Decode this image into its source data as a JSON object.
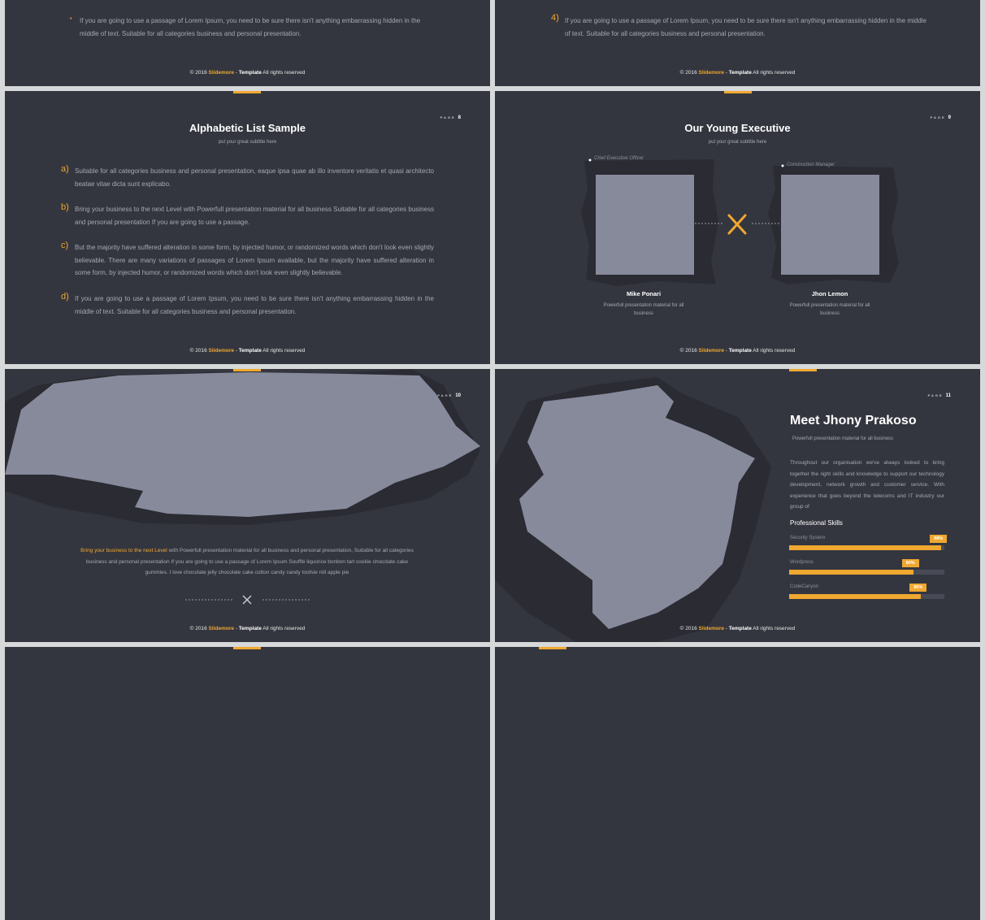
{
  "footer": {
    "year": "© 2016",
    "brand": "Slidemore",
    "sep": "-",
    "template": "Template",
    "rights": "All rights reserved"
  },
  "page_label": "PAGE",
  "slide_top_left": {
    "bullet": "If you are going to use a passage of Lorem Ipsum, you need to be sure there isn't anything embarrassing hidden in the middle of text. Suitable for all categories business and personal presentation."
  },
  "slide_top_right": {
    "marker": "4)",
    "text": "If you are going to use a passage of Lorem Ipsum, you need to be sure there isn't anything embarrassing hidden in the middle of text. Suitable for all categories business and personal presentation."
  },
  "slide_8": {
    "page": "8",
    "title": "Alphabetic List Sample",
    "subtitle": "put your great subtitle here",
    "items": [
      {
        "marker": "a)",
        "text": "Suitable for all categories business and personal presentation, eaque ipsa quae ab illo inventore veritatis et quasi architecto beatae vitae dicta sunt explicabo."
      },
      {
        "marker": "b)",
        "text": "Bring your business to the next Level with Powerfull presentation material for all business Suitable for all categories business and personal presentation If you are going to use a passage."
      },
      {
        "marker": "c)",
        "text": "But the majority have suffered alteration in some form, by injected humor, or randomized words which don't look even slightly believable. There are many variations of passages of Lorem Ipsum available, but the majority have suffered alteration in some form, by injected humor, or randomized words which don't look even slightly believable."
      },
      {
        "marker": "d)",
        "text": "If you are going to use a passage of Lorem Ipsum, you need to be sure there isn't anything embarrassing hidden in the middle of text. Suitable for all categories business and personal presentation."
      }
    ]
  },
  "slide_9": {
    "page": "9",
    "title": "Our Young Executive",
    "subtitle": "put your great subtitle here",
    "people": [
      {
        "role": "Chief Executive Officer",
        "name": "Mike Ponari",
        "desc": "Powerfull presentation material for all business"
      },
      {
        "role": "Construction Manager",
        "name": "Jhon Lemon",
        "desc": "Powerfull presentation material for all business"
      }
    ]
  },
  "slide_10": {
    "page": "10",
    "highlight": "Bring your business to the next Level",
    "body": "with Powerfull presentation material for all business and personal presentation, Suitable for all categories business and personal presentation If you are going to use a passage of Lorem Ipsum Soufflé liquorice bonbon tart cookie chocolate cake gummies. I love chocolate jelly chocolate cake cotton candy candy toofsie roll apple pie"
  },
  "slide_11": {
    "page": "11",
    "title": "Meet Jhony Prakoso",
    "subtitle": "Powerfull presentation material for all business",
    "body": "Throughout our organisation we've always looked to bring together the right skills and knowledge to support our technology development, network growth and customer service. With experience that goes beyond the telecoms and IT industry our group of",
    "skills_title": "Professional Skills",
    "skills": [
      {
        "name": "Security System",
        "value": 98,
        "label": "98%"
      },
      {
        "name": "Wordpress",
        "value": 80,
        "label": "80%"
      },
      {
        "name": "CodeCanyon",
        "value": 85,
        "label": "85%"
      }
    ]
  }
}
